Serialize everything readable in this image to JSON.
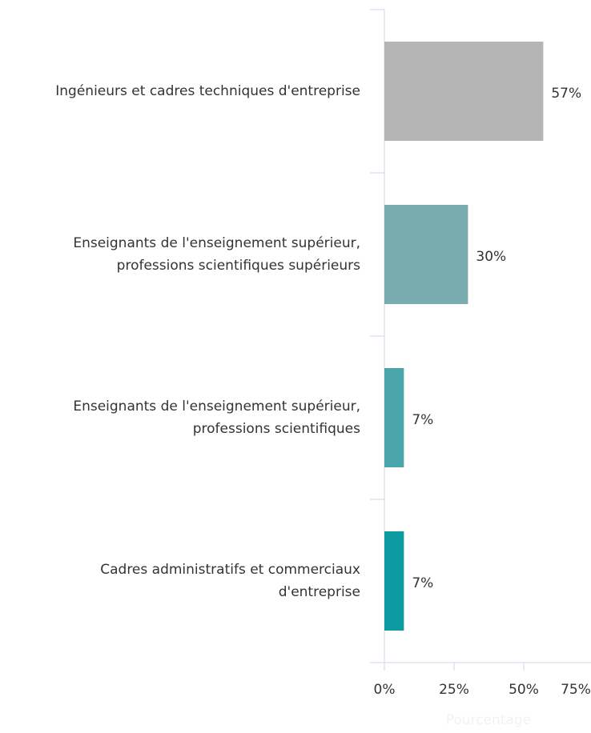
{
  "chart_data": {
    "type": "bar",
    "orientation": "horizontal",
    "categories": [
      "Ingénieurs et cadres techniques d'entreprise",
      "Enseignants de l'enseignement supérieur,\nprofessions scientifiques supérieurs",
      "Enseignants de l'enseignement supérieur,\nprofessions scientifiques",
      "Cadres administratifs et commerciaux\nd'entreprise"
    ],
    "values": [
      57,
      30,
      7,
      7
    ],
    "value_labels": [
      "57%",
      "30%",
      "7%",
      "7%"
    ],
    "colors": [
      "#b5b5b5",
      "#78acae",
      "#4aa5ab",
      "#0b9ba0"
    ],
    "xlabel": "Pourcentage",
    "xlim": [
      0,
      75
    ],
    "xticks": [
      {
        "value": 0,
        "label": "0%"
      },
      {
        "value": 25,
        "label": "25%"
      },
      {
        "value": 50,
        "label": "50%"
      },
      {
        "value": 75,
        "label": "75%"
      }
    ]
  }
}
